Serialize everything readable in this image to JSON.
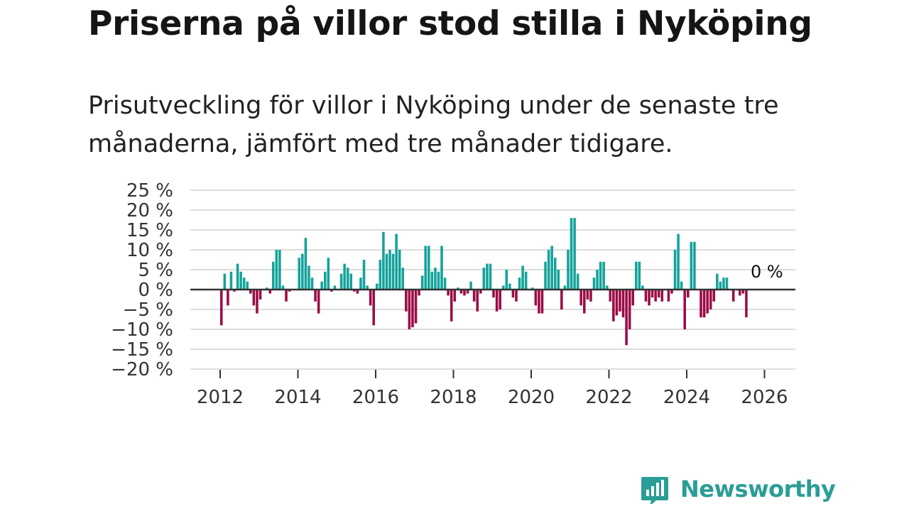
{
  "title": "Priserna på villor stod stilla i Nyköping",
  "subtitle": "Prisutveckling för villor i Nyköping under de senaste tre månaderna, jämfört med tre månader tidigare.",
  "end_label": "0 %",
  "brand": {
    "name": "Newsworthy",
    "color": "#2a9d96"
  },
  "colors": {
    "positive": "#14a39a",
    "negative": "#9b0b45",
    "grid": "#dddddd",
    "zero": "#333333"
  },
  "chart_data": {
    "type": "bar",
    "title": "Priserna på villor stod stilla i Nyköping",
    "xlabel": "",
    "ylabel": "",
    "ylim": [
      -20,
      25
    ],
    "xlim": [
      2011.6,
      2026.8
    ],
    "y_ticks": [
      25,
      20,
      15,
      10,
      5,
      0,
      -5,
      -10,
      -15,
      -20
    ],
    "y_tick_labels": [
      "25 %",
      "20 %",
      "15 %",
      "10 %",
      "5 %",
      "0 %",
      "−5 %",
      "−10 %",
      "−15 %",
      "−20 %"
    ],
    "x_ticks": [
      2012,
      2014,
      2016,
      2018,
      2020,
      2022,
      2024,
      2026
    ],
    "x_tick_labels": [
      "2012",
      "2014",
      "2016",
      "2018",
      "2020",
      "2022",
      "2024",
      "2026"
    ],
    "x_start": 2012.0,
    "x_step_months": 1,
    "values": [
      -9,
      4,
      -4,
      4.5,
      -0.5,
      6.5,
      4.5,
      3,
      2,
      -1,
      -4,
      -6,
      -2.5,
      0,
      0.5,
      -1,
      7,
      10,
      10,
      1,
      -3,
      -0.5,
      0,
      0,
      8,
      9,
      13,
      6,
      3,
      -3,
      -6,
      2,
      4.5,
      8,
      -0.5,
      1,
      0,
      4,
      6.5,
      5.5,
      4,
      -0.5,
      -1,
      3,
      7.5,
      1,
      -4,
      -9,
      1.5,
      7.5,
      14.5,
      9,
      10,
      9,
      14,
      10,
      5.5,
      -5.5,
      -10,
      -9.5,
      -8.5,
      -1.5,
      3.5,
      11,
      11,
      4.5,
      5.5,
      4.5,
      11,
      3,
      -1.5,
      -8,
      -3,
      0.5,
      -1,
      -1.5,
      -1,
      2,
      -3,
      -5.5,
      -1,
      5.5,
      6.5,
      6.5,
      -2,
      -5.5,
      -5,
      1,
      5,
      1.5,
      -2,
      -3,
      3,
      6,
      4.5,
      0,
      0.5,
      -4,
      -6,
      -6,
      7,
      10,
      11,
      8,
      5,
      -5,
      1,
      10,
      18,
      18,
      4,
      -4,
      -6,
      -2.5,
      -3,
      3,
      5,
      7,
      7,
      1,
      -3,
      -8,
      -6.5,
      -5.5,
      -7,
      -14,
      -10,
      -4,
      7,
      7,
      1,
      -3,
      -4,
      -2,
      -3,
      -2,
      -3,
      0,
      -3,
      -1,
      10,
      14,
      2,
      -10,
      -2,
      12,
      12,
      0,
      -7,
      -7,
      -6,
      -5,
      -3,
      4,
      2,
      3,
      3,
      0,
      -3,
      0,
      -1.5,
      -1,
      -7,
      0
    ]
  }
}
